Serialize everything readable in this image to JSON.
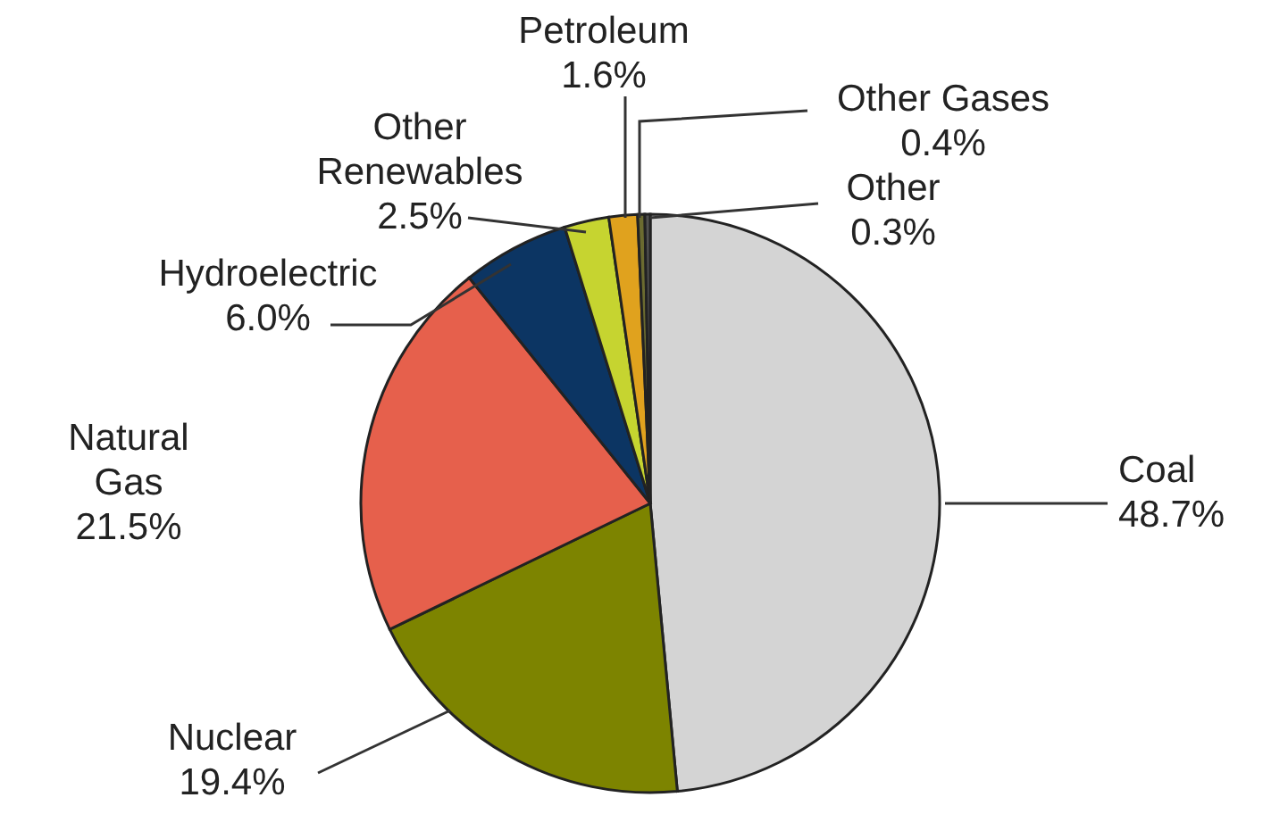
{
  "chart_data": {
    "type": "pie",
    "categories": [
      "Coal",
      "Nuclear",
      "Natural Gas",
      "Hydroelectric",
      "Other Renewables",
      "Petroleum",
      "Other Gases",
      "Other"
    ],
    "values": [
      48.7,
      19.4,
      21.5,
      6.0,
      2.5,
      1.6,
      0.4,
      0.3
    ],
    "value_labels": [
      "48.7%",
      "19.4%",
      "21.5%",
      "6.0%",
      "2.5%",
      "1.6%",
      "0.4%",
      "0.3%"
    ],
    "colors": [
      "#d4d4d4",
      "#7d8400",
      "#e6604c",
      "#0c3563",
      "#c6d430",
      "#e0a21e",
      "#6b6b30",
      "#505050"
    ]
  }
}
